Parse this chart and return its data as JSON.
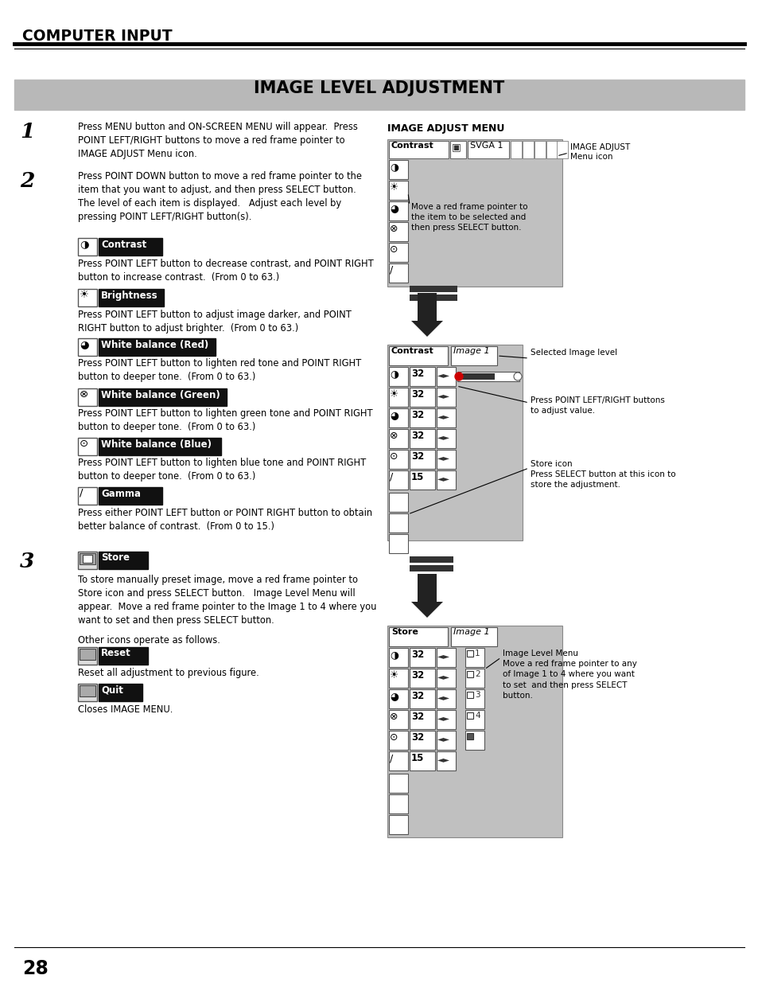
{
  "page_title": "COMPUTER INPUT",
  "section_title": "IMAGE LEVEL ADJUSTMENT",
  "bg_color": "#ffffff",
  "title_bar_color": "#c8c8c8",
  "section_label_bg": "#1a1a1a",
  "section_label_color": "#ffffff",
  "step1_text": "Press MENU button and ON-SCREEN MENU will appear.  Press\nPOINT LEFT/RIGHT buttons to move a red frame pointer to\nIMAGE ADJUST Menu icon.",
  "step2_text": "Press POINT DOWN button to move a red frame pointer to the\nitem that you want to adjust, and then press SELECT button.\nThe level of each item is displayed.   Adjust each level by\npressing POINT LEFT/RIGHT button(s).",
  "contrast_text": "Press POINT LEFT button to decrease contrast, and POINT RIGHT\nbutton to increase contrast.  (From 0 to 63.)",
  "brightness_text": "Press POINT LEFT button to adjust image darker, and POINT\nRIGHT button to adjust brighter.  (From 0 to 63.)",
  "wb_red_text": "Press POINT LEFT button to lighten red tone and POINT RIGHT\nbutton to deeper tone.  (From 0 to 63.)",
  "wb_green_text": "Press POINT LEFT button to lighten green tone and POINT RIGHT\nbutton to deeper tone.  (From 0 to 63.)",
  "wb_blue_text": "Press POINT LEFT button to lighten blue tone and POINT RIGHT\nbutton to deeper tone.  (From 0 to 63.)",
  "gamma_text": "Press either POINT LEFT button or POINT RIGHT button to obtain\nbetter balance of contrast.  (From 0 to 15.)",
  "step3_text": "To store manually preset image, move a red frame pointer to\nStore icon and press SELECT button.   Image Level Menu will\nappear.  Move a red frame pointer to the Image 1 to 4 where you\nwant to set and then press SELECT button.",
  "other_icons_text": "Other icons operate as follows.",
  "reset_text": "Reset all adjustment to previous figure.",
  "quit_text": "Closes IMAGE MENU.",
  "image_adjust_menu_label": "IMAGE ADJUST MENU",
  "image_adjust_note": "Move a red frame pointer to\nthe item to be selected and\nthen press SELECT button.",
  "image_adjust_icon_note": "IMAGE ADJUST\nMenu icon",
  "selected_image_level_note": "Selected Image level",
  "press_point_note": "Press POINT LEFT/RIGHT buttons\nto adjust value.",
  "store_icon_note": "Store icon\nPress SELECT button at this icon to\nstore the adjustment.",
  "image_level_menu_note": "Image Level Menu\nMove a red frame pointer to any\nof Image 1 to 4 where you want\nto set  and then press SELECT\nbutton.",
  "page_number": "28"
}
